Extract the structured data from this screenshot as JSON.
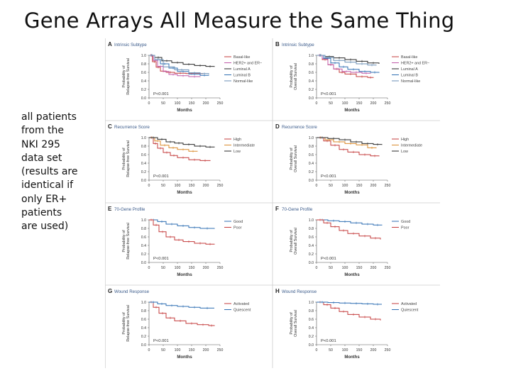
{
  "slide": {
    "title": "Gene Arrays All Measure the Same Thing",
    "note_lines": [
      "all patients",
      "from the",
      "NKI 295",
      "data set",
      "(results are",
      "identical if",
      "only ER+",
      "patients",
      "are used)"
    ]
  },
  "chart_data": [
    {
      "panel": "A",
      "panel_title": "Intrinsic Subtype",
      "type": "line",
      "ylabel": "Probability of Relapse-free Survival",
      "xlabel": "Months",
      "xlim": [
        0,
        250
      ],
      "ylim": [
        0,
        1.0
      ],
      "xticks": [
        "0",
        "50",
        "100",
        "150",
        "200",
        "250"
      ],
      "yticks": [
        "0.0",
        "0.2",
        "0.4",
        "0.6",
        "0.8",
        "1.0"
      ],
      "pvalue": "P<0.001",
      "series": [
        {
          "name": "Basal-like",
          "color": "#c43c3c",
          "points": [
            [
              0,
              1.0
            ],
            [
              12,
              0.85
            ],
            [
              25,
              0.72
            ],
            [
              40,
              0.63
            ],
            [
              60,
              0.6
            ],
            [
              90,
              0.58
            ],
            [
              130,
              0.57
            ],
            [
              170,
              0.57
            ],
            [
              190,
              0.57
            ]
          ]
        },
        {
          "name": "HER2+ and ER−",
          "color": "#c05aa8",
          "points": [
            [
              0,
              1.0
            ],
            [
              15,
              0.88
            ],
            [
              30,
              0.74
            ],
            [
              50,
              0.62
            ],
            [
              70,
              0.55
            ],
            [
              100,
              0.52
            ],
            [
              140,
              0.5
            ],
            [
              180,
              0.49
            ]
          ]
        },
        {
          "name": "Luminal A",
          "color": "#2a2a2a",
          "points": [
            [
              0,
              1.0
            ],
            [
              20,
              0.95
            ],
            [
              45,
              0.87
            ],
            [
              80,
              0.83
            ],
            [
              120,
              0.79
            ],
            [
              160,
              0.76
            ],
            [
              200,
              0.74
            ],
            [
              230,
              0.73
            ]
          ]
        },
        {
          "name": "Luminal B",
          "color": "#2f6fb3",
          "points": [
            [
              0,
              1.0
            ],
            [
              20,
              0.9
            ],
            [
              40,
              0.8
            ],
            [
              70,
              0.7
            ],
            [
              100,
              0.62
            ],
            [
              140,
              0.56
            ],
            [
              180,
              0.53
            ],
            [
              210,
              0.52
            ]
          ]
        },
        {
          "name": "Normal-like",
          "color": "#6a8fb5",
          "points": [
            [
              0,
              1.0
            ],
            [
              20,
              0.9
            ],
            [
              50,
              0.73
            ],
            [
              90,
              0.66
            ],
            [
              140,
              0.59
            ],
            [
              180,
              0.57
            ],
            [
              210,
              0.55
            ]
          ]
        }
      ]
    },
    {
      "panel": "B",
      "panel_title": "Intrinsic Subtype",
      "type": "line",
      "ylabel": "Probability of Overall Survival",
      "xlabel": "Months",
      "xlim": [
        0,
        250
      ],
      "ylim": [
        0,
        1.0
      ],
      "xticks": [
        "0",
        "50",
        "100",
        "150",
        "200",
        "250"
      ],
      "yticks": [
        "0.0",
        "0.2",
        "0.4",
        "0.6",
        "0.8",
        "1.0"
      ],
      "pvalue": "P<0.001",
      "series": [
        {
          "name": "Basal-like",
          "color": "#c43c3c",
          "points": [
            [
              0,
              1.0
            ],
            [
              20,
              0.9
            ],
            [
              40,
              0.78
            ],
            [
              60,
              0.68
            ],
            [
              80,
              0.6
            ],
            [
              100,
              0.56
            ],
            [
              140,
              0.5
            ],
            [
              180,
              0.48
            ],
            [
              200,
              0.47
            ]
          ]
        },
        {
          "name": "HER2+ and ER−",
          "color": "#c05aa8",
          "points": [
            [
              0,
              1.0
            ],
            [
              20,
              0.92
            ],
            [
              40,
              0.78
            ],
            [
              60,
              0.68
            ],
            [
              90,
              0.62
            ],
            [
              120,
              0.6
            ],
            [
              160,
              0.58
            ],
            [
              190,
              0.57
            ]
          ]
        },
        {
          "name": "Luminal A",
          "color": "#2a2a2a",
          "points": [
            [
              0,
              1.0
            ],
            [
              30,
              0.97
            ],
            [
              60,
              0.94
            ],
            [
              100,
              0.9
            ],
            [
              140,
              0.86
            ],
            [
              180,
              0.82
            ],
            [
              220,
              0.8
            ]
          ]
        },
        {
          "name": "Luminal B",
          "color": "#2f6fb3",
          "points": [
            [
              0,
              1.0
            ],
            [
              25,
              0.93
            ],
            [
              50,
              0.82
            ],
            [
              80,
              0.73
            ],
            [
              110,
              0.67
            ],
            [
              150,
              0.62
            ],
            [
              190,
              0.6
            ],
            [
              220,
              0.59
            ]
          ]
        },
        {
          "name": "Normal-like",
          "color": "#6a8fb5",
          "points": [
            [
              0,
              1.0
            ],
            [
              30,
              0.95
            ],
            [
              60,
              0.88
            ],
            [
              100,
              0.84
            ],
            [
              140,
              0.8
            ],
            [
              180,
              0.77
            ],
            [
              210,
              0.76
            ]
          ]
        }
      ]
    },
    {
      "panel": "C",
      "panel_title": "Recurrence Score",
      "type": "line",
      "ylabel": "Probability of Relapse-free Survival",
      "xlabel": "Months",
      "xlim": [
        0,
        250
      ],
      "ylim": [
        0,
        1.0
      ],
      "xticks": [
        "0",
        "50",
        "100",
        "150",
        "200",
        "250"
      ],
      "yticks": [
        "0.0",
        "0.2",
        "0.4",
        "0.6",
        "0.8",
        "1.0"
      ],
      "pvalue": "P<0.001",
      "series": [
        {
          "name": "High",
          "color": "#c43c3c",
          "points": [
            [
              0,
              1.0
            ],
            [
              15,
              0.86
            ],
            [
              30,
              0.75
            ],
            [
              50,
              0.65
            ],
            [
              75,
              0.58
            ],
            [
              100,
              0.53
            ],
            [
              140,
              0.48
            ],
            [
              180,
              0.46
            ],
            [
              215,
              0.45
            ]
          ]
        },
        {
          "name": "Intermediate",
          "color": "#d98a2b",
          "points": [
            [
              0,
              1.0
            ],
            [
              20,
              0.92
            ],
            [
              40,
              0.82
            ],
            [
              70,
              0.76
            ],
            [
              100,
              0.72
            ],
            [
              140,
              0.68
            ],
            [
              170,
              0.67
            ]
          ]
        },
        {
          "name": "Low",
          "color": "#2a2a2a",
          "points": [
            [
              0,
              1.0
            ],
            [
              30,
              0.96
            ],
            [
              60,
              0.9
            ],
            [
              90,
              0.87
            ],
            [
              120,
              0.84
            ],
            [
              160,
              0.8
            ],
            [
              200,
              0.78
            ],
            [
              230,
              0.77
            ]
          ]
        }
      ]
    },
    {
      "panel": "D",
      "panel_title": "Recurrence Score",
      "type": "line",
      "ylabel": "Probability of Overall Survival",
      "xlabel": "Months",
      "xlim": [
        0,
        250
      ],
      "ylim": [
        0,
        1.0
      ],
      "xticks": [
        "0",
        "50",
        "100",
        "150",
        "200",
        "250"
      ],
      "yticks": [
        "0.0",
        "0.2",
        "0.4",
        "0.6",
        "0.8",
        "1.0"
      ],
      "pvalue": "P<0.001",
      "series": [
        {
          "name": "High",
          "color": "#c43c3c",
          "points": [
            [
              0,
              1.0
            ],
            [
              25,
              0.92
            ],
            [
              50,
              0.82
            ],
            [
              80,
              0.72
            ],
            [
              110,
              0.66
            ],
            [
              150,
              0.6
            ],
            [
              190,
              0.57
            ],
            [
              220,
              0.56
            ]
          ]
        },
        {
          "name": "Intermediate",
          "color": "#d98a2b",
          "points": [
            [
              0,
              1.0
            ],
            [
              30,
              0.95
            ],
            [
              60,
              0.9
            ],
            [
              100,
              0.86
            ],
            [
              140,
              0.83
            ],
            [
              180,
              0.76
            ],
            [
              210,
              0.75
            ]
          ]
        },
        {
          "name": "Low",
          "color": "#2a2a2a",
          "points": [
            [
              0,
              1.0
            ],
            [
              40,
              0.98
            ],
            [
              80,
              0.95
            ],
            [
              120,
              0.9
            ],
            [
              160,
              0.86
            ],
            [
              200,
              0.84
            ],
            [
              230,
              0.83
            ]
          ]
        }
      ]
    },
    {
      "panel": "E",
      "panel_title": "70-Gene Profile",
      "type": "line",
      "ylabel": "Probability of Relapse-free Survival",
      "xlabel": "Months",
      "xlim": [
        0,
        250
      ],
      "ylim": [
        0,
        1.0
      ],
      "xticks": [
        "0",
        "50",
        "100",
        "150",
        "200",
        "250"
      ],
      "yticks": [
        "0.0",
        "0.2",
        "0.4",
        "0.6",
        "0.8",
        "1.0"
      ],
      "pvalue": "P<0.001",
      "series": [
        {
          "name": "Good",
          "color": "#2f6fb3",
          "points": [
            [
              0,
              1.0
            ],
            [
              30,
              0.96
            ],
            [
              60,
              0.9
            ],
            [
              100,
              0.86
            ],
            [
              140,
              0.82
            ],
            [
              180,
              0.8
            ],
            [
              230,
              0.79
            ]
          ]
        },
        {
          "name": "Poor",
          "color": "#c43c3c",
          "points": [
            [
              0,
              1.0
            ],
            [
              15,
              0.88
            ],
            [
              35,
              0.72
            ],
            [
              60,
              0.6
            ],
            [
              90,
              0.53
            ],
            [
              120,
              0.49
            ],
            [
              160,
              0.45
            ],
            [
              200,
              0.43
            ],
            [
              230,
              0.42
            ]
          ]
        }
      ]
    },
    {
      "panel": "F",
      "panel_title": "70-Gene Profile",
      "type": "line",
      "ylabel": "Probability of Overall Survival",
      "xlabel": "Months",
      "xlim": [
        0,
        250
      ],
      "ylim": [
        0,
        1.0
      ],
      "xticks": [
        "0",
        "50",
        "100",
        "150",
        "200",
        "250"
      ],
      "yticks": [
        "0.0",
        "0.2",
        "0.4",
        "0.6",
        "0.8",
        "1.0"
      ],
      "pvalue": "P<0.001",
      "series": [
        {
          "name": "Good",
          "color": "#2f6fb3",
          "points": [
            [
              0,
              1.0
            ],
            [
              40,
              0.98
            ],
            [
              80,
              0.96
            ],
            [
              120,
              0.93
            ],
            [
              160,
              0.9
            ],
            [
              200,
              0.88
            ],
            [
              230,
              0.87
            ]
          ]
        },
        {
          "name": "Poor",
          "color": "#c43c3c",
          "points": [
            [
              0,
              1.0
            ],
            [
              25,
              0.93
            ],
            [
              50,
              0.84
            ],
            [
              80,
              0.75
            ],
            [
              110,
              0.68
            ],
            [
              150,
              0.62
            ],
            [
              190,
              0.57
            ],
            [
              225,
              0.54
            ]
          ]
        }
      ]
    },
    {
      "panel": "G",
      "panel_title": "Wound Response",
      "type": "line",
      "ylabel": "Probability of Relapse-free Survival",
      "xlabel": "Months",
      "xlim": [
        0,
        250
      ],
      "ylim": [
        0,
        1.0
      ],
      "xticks": [
        "0",
        "50",
        "100",
        "150",
        "200",
        "250"
      ],
      "yticks": [
        "0.0",
        "0.2",
        "0.4",
        "0.6",
        "0.8",
        "1.0"
      ],
      "pvalue": "P<0.001",
      "series": [
        {
          "name": "Activated",
          "color": "#c43c3c",
          "points": [
            [
              0,
              1.0
            ],
            [
              15,
              0.88
            ],
            [
              35,
              0.74
            ],
            [
              60,
              0.63
            ],
            [
              90,
              0.56
            ],
            [
              130,
              0.5
            ],
            [
              170,
              0.47
            ],
            [
              210,
              0.45
            ],
            [
              230,
              0.44
            ]
          ]
        },
        {
          "name": "Quiescent",
          "color": "#2f6fb3",
          "points": [
            [
              0,
              1.0
            ],
            [
              30,
              0.96
            ],
            [
              60,
              0.92
            ],
            [
              100,
              0.9
            ],
            [
              140,
              0.88
            ],
            [
              180,
              0.86
            ],
            [
              230,
              0.86
            ]
          ]
        }
      ]
    },
    {
      "panel": "H",
      "panel_title": "Wound Response",
      "type": "line",
      "ylabel": "Probability of Overall Survival",
      "xlabel": "Months",
      "xlim": [
        0,
        250
      ],
      "ylim": [
        0,
        1.0
      ],
      "xticks": [
        "0",
        "50",
        "100",
        "150",
        "200",
        "250"
      ],
      "yticks": [
        "0.0",
        "0.2",
        "0.4",
        "0.6",
        "0.8",
        "1.0"
      ],
      "pvalue": "P<0.001",
      "series": [
        {
          "name": "Activated",
          "color": "#c43c3c",
          "points": [
            [
              0,
              1.0
            ],
            [
              25,
              0.94
            ],
            [
              50,
              0.86
            ],
            [
              80,
              0.78
            ],
            [
              110,
              0.71
            ],
            [
              150,
              0.65
            ],
            [
              190,
              0.6
            ],
            [
              225,
              0.57
            ]
          ]
        },
        {
          "name": "Quiescent",
          "color": "#2f6fb3",
          "points": [
            [
              0,
              1.0
            ],
            [
              40,
              0.99
            ],
            [
              80,
              0.98
            ],
            [
              120,
              0.97
            ],
            [
              160,
              0.96
            ],
            [
              200,
              0.95
            ],
            [
              230,
              0.95
            ]
          ]
        }
      ]
    }
  ]
}
